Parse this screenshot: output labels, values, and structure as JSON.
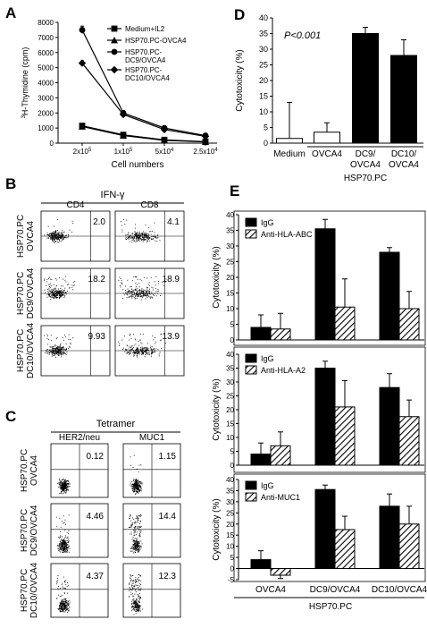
{
  "panels": {
    "A": "A",
    "B": "B",
    "C": "C",
    "D": "D",
    "E": "E"
  },
  "chart_data": [
    {
      "panel": "A",
      "type": "line",
      "ylabel_super": "3",
      "ylabel": "H-Thymidine (cpm)",
      "xlabel": "Cell numbers",
      "x_ticks": [
        "2x10",
        "1x10",
        "5x10",
        "2.5x10"
      ],
      "x_ticks_exp": [
        "5",
        "5",
        "4",
        "4"
      ],
      "yticks": [
        0,
        1000,
        2000,
        3000,
        4000,
        5000,
        6000,
        7000,
        8000
      ],
      "ylim": [
        0,
        8000
      ],
      "series": [
        {
          "name": "Medium+IL2",
          "marker": "square",
          "values": [
            1150,
            550,
            220,
            100
          ],
          "errors": [
            150,
            80,
            40,
            30
          ]
        },
        {
          "name": "HSP70.PC-OVCA4",
          "marker": "triangle",
          "values": [
            1100,
            500,
            180,
            80
          ],
          "errors": [
            120,
            70,
            40,
            30
          ]
        },
        {
          "name": "HSP70.PC-\nDC9/OVCA4",
          "marker": "circle",
          "values": [
            7500,
            2000,
            1000,
            500
          ],
          "errors": [
            250,
            150,
            100,
            60
          ]
        },
        {
          "name": "HSP70.PC-\nDC10/OVCA4",
          "marker": "diamond",
          "values": [
            5300,
            1900,
            900,
            450
          ],
          "errors": [
            150,
            120,
            80,
            60
          ]
        }
      ]
    },
    {
      "panel": "D",
      "type": "bar",
      "ylabel": "Cytotoxicity (%)",
      "ylim": [
        0,
        40
      ],
      "yticks": [
        0,
        5,
        10,
        15,
        20,
        25,
        30,
        35,
        40
      ],
      "annotation": "P<0.001",
      "categories": [
        "Medium",
        "OVCA4",
        "DC9/\nOVCA4",
        "DC10/\nOVCA4"
      ],
      "values": [
        1.5,
        3.5,
        35,
        28
      ],
      "errors": [
        11.5,
        3,
        2,
        5
      ],
      "fills": [
        "#ffffff",
        "#ffffff",
        "#000000",
        "#000000"
      ],
      "group_label": "HSP70.PC"
    },
    {
      "panel": "E1",
      "type": "bar",
      "ylabel": "Cytotoxicity (%)",
      "ylim": [
        0,
        40
      ],
      "yticks": [
        0,
        5,
        10,
        15,
        20,
        25,
        30,
        35,
        40
      ],
      "categories": [
        "OVCA4",
        "DC9/OVCA4",
        "DC10/OVCA4"
      ],
      "series": [
        {
          "name": "IgG",
          "values": [
            4,
            35.5,
            28
          ],
          "errors": [
            4,
            3,
            1.5
          ]
        },
        {
          "name": "Anti-HLA-ABC",
          "values": [
            3.5,
            10.5,
            10
          ],
          "errors": [
            5,
            9,
            5.5
          ]
        }
      ]
    },
    {
      "panel": "E2",
      "type": "bar",
      "ylabel": "Cytotoxicity (%)",
      "ylim": [
        0,
        40
      ],
      "yticks": [
        0,
        5,
        10,
        15,
        20,
        25,
        30,
        35,
        40
      ],
      "categories": [
        "OVCA4",
        "DC9/OVCA4",
        "DC10/OVCA4"
      ],
      "series": [
        {
          "name": "IgG",
          "values": [
            4,
            35,
            28
          ],
          "errors": [
            4,
            2.5,
            5
          ]
        },
        {
          "name": "Anti-HLA-A2",
          "values": [
            7,
            21,
            17.5
          ],
          "errors": [
            5,
            9.5,
            6
          ]
        }
      ]
    },
    {
      "panel": "E3",
      "type": "bar",
      "ylabel": "Cytotoxicity (%)",
      "ylim": [
        -5,
        40
      ],
      "yticks": [
        -5,
        0,
        5,
        10,
        15,
        20,
        25,
        30,
        35,
        40
      ],
      "categories": [
        "OVCA4",
        "DC9/OVCA4",
        "DC10/OVCA4"
      ],
      "group_label": "HSP70.PC",
      "series": [
        {
          "name": "IgG",
          "values": [
            4,
            35.5,
            28
          ],
          "errors": [
            4,
            2,
            5.5
          ]
        },
        {
          "name": "Anti-MUC1",
          "values": [
            -3,
            17.5,
            20
          ],
          "errors": [
            1.5,
            6,
            8
          ]
        }
      ]
    },
    {
      "panel": "B",
      "type": "scatter",
      "group_title": "IFN-γ",
      "columns": [
        "CD4",
        "CD8"
      ],
      "rows": [
        "HSP70.PC\nOVCA4",
        "HSP70.PC\nDC9/OVCA4",
        "HSP70.PC\nDC10/OVCA4"
      ],
      "percents": [
        [
          "2.0",
          "4.1"
        ],
        [
          "18.2",
          "18.9"
        ],
        [
          "9.93",
          "13.9"
        ]
      ]
    },
    {
      "panel": "C",
      "type": "scatter",
      "group_title": "Tetramer",
      "columns": [
        "HER2/neu",
        "MUC1"
      ],
      "rows": [
        "HSP70.PC\nOVCA4",
        "HSP70.PC\nDC9/OVCA4",
        "HSP70.PC\nDC10/OVCA4"
      ],
      "percents": [
        [
          "0.12",
          "1.15"
        ],
        [
          "4.46",
          "14.4"
        ],
        [
          "4.37",
          "12.3"
        ]
      ]
    }
  ]
}
